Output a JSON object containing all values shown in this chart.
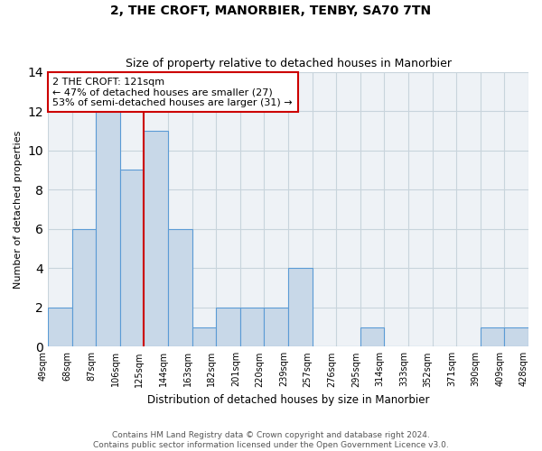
{
  "title": "2, THE CROFT, MANORBIER, TENBY, SA70 7TN",
  "subtitle": "Size of property relative to detached houses in Manorbier",
  "xlabel": "Distribution of detached houses by size in Manorbier",
  "ylabel": "Number of detached properties",
  "bin_edges": [
    "49sqm",
    "68sqm",
    "87sqm",
    "106sqm",
    "125sqm",
    "144sqm",
    "163sqm",
    "182sqm",
    "201sqm",
    "220sqm",
    "239sqm",
    "257sqm",
    "276sqm",
    "295sqm",
    "314sqm",
    "333sqm",
    "352sqm",
    "371sqm",
    "390sqm",
    "409sqm",
    "428sqm"
  ],
  "bar_heights": [
    2,
    6,
    12,
    9,
    11,
    6,
    1,
    2,
    2,
    2,
    4,
    0,
    0,
    1,
    0,
    0,
    0,
    0,
    1,
    1
  ],
  "bar_color": "#c8d8e8",
  "bar_edge_color": "#5b9bd5",
  "red_line_bin": 4,
  "property_label": "2 THE CROFT: 121sqm",
  "annotation_line1": "← 47% of detached houses are smaller (27)",
  "annotation_line2": "53% of semi-detached houses are larger (31) →",
  "annotation_box_color": "#ffffff",
  "annotation_box_edge": "#cc0000",
  "red_line_color": "#cc0000",
  "ylim": [
    0,
    14
  ],
  "yticks": [
    0,
    2,
    4,
    6,
    8,
    10,
    12,
    14
  ],
  "footer1": "Contains HM Land Registry data © Crown copyright and database right 2024.",
  "footer2": "Contains public sector information licensed under the Open Government Licence v3.0.",
  "grid_color": "#c8d4dc",
  "background_color": "#eef2f6",
  "title_fontsize": 10,
  "subtitle_fontsize": 9
}
